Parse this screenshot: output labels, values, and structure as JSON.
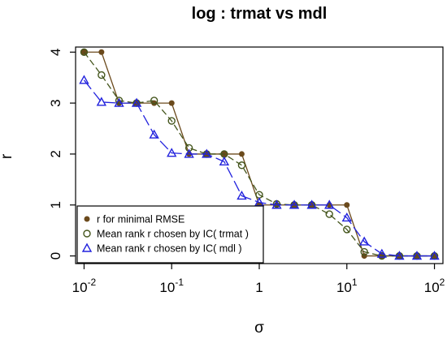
{
  "chart_data": {
    "type": "line",
    "title": "log :  trmat vs mdl",
    "xlabel": "σ",
    "ylabel": "r",
    "xscale": "log",
    "xlim": [
      0.008,
      125
    ],
    "ylim": [
      -0.15,
      4.1
    ],
    "x_ticks": [
      {
        "value": 0.01,
        "base": "10",
        "exp": "-2"
      },
      {
        "value": 0.1,
        "base": "10",
        "exp": "-1"
      },
      {
        "value": 1,
        "label": "1"
      },
      {
        "value": 10,
        "base": "10",
        "exp": "1"
      },
      {
        "value": 100,
        "base": "10",
        "exp": "2"
      }
    ],
    "y_ticks": [
      {
        "value": 0,
        "label": "0"
      },
      {
        "value": 1,
        "label": "1"
      },
      {
        "value": 2,
        "label": "2"
      },
      {
        "value": 3,
        "label": "3"
      },
      {
        "value": 4,
        "label": "4"
      }
    ],
    "grid": false,
    "legend_position": "bottom-left",
    "x": [
      0.01,
      0.0158,
      0.0251,
      0.0398,
      0.0631,
      0.1,
      0.158,
      0.251,
      0.398,
      0.631,
      1,
      1.58,
      2.51,
      3.98,
      6.31,
      10,
      15.8,
      25.1,
      39.8,
      63.1,
      100
    ],
    "series": [
      {
        "name": "r for minimal RMSE",
        "marker": "filled-circle",
        "color": "#6b4a1c",
        "values": [
          4,
          4,
          3,
          3,
          3,
          3,
          2,
          2,
          2,
          2,
          1,
          1,
          1,
          1,
          1,
          1,
          0,
          0,
          0,
          0,
          0
        ]
      },
      {
        "name": "Mean rank r chosen by IC( trmat )",
        "marker": "open-circle",
        "color": "#44551c",
        "values": [
          4,
          3.55,
          3.05,
          3,
          3.05,
          2.65,
          2.12,
          2,
          2,
          1.78,
          1.2,
          1.02,
          1,
          1,
          0.82,
          0.52,
          0.08,
          0,
          0,
          0,
          0
        ]
      },
      {
        "name": "Mean rank r chosen by IC( mdl )",
        "marker": "open-triangle",
        "color": "#2222dd",
        "values": [
          3.45,
          3.02,
          3,
          3,
          2.38,
          2.02,
          2,
          2,
          1.85,
          1.18,
          1.05,
          1,
          1,
          1,
          1,
          0.75,
          0.28,
          0.04,
          0,
          0,
          0
        ]
      }
    ]
  }
}
